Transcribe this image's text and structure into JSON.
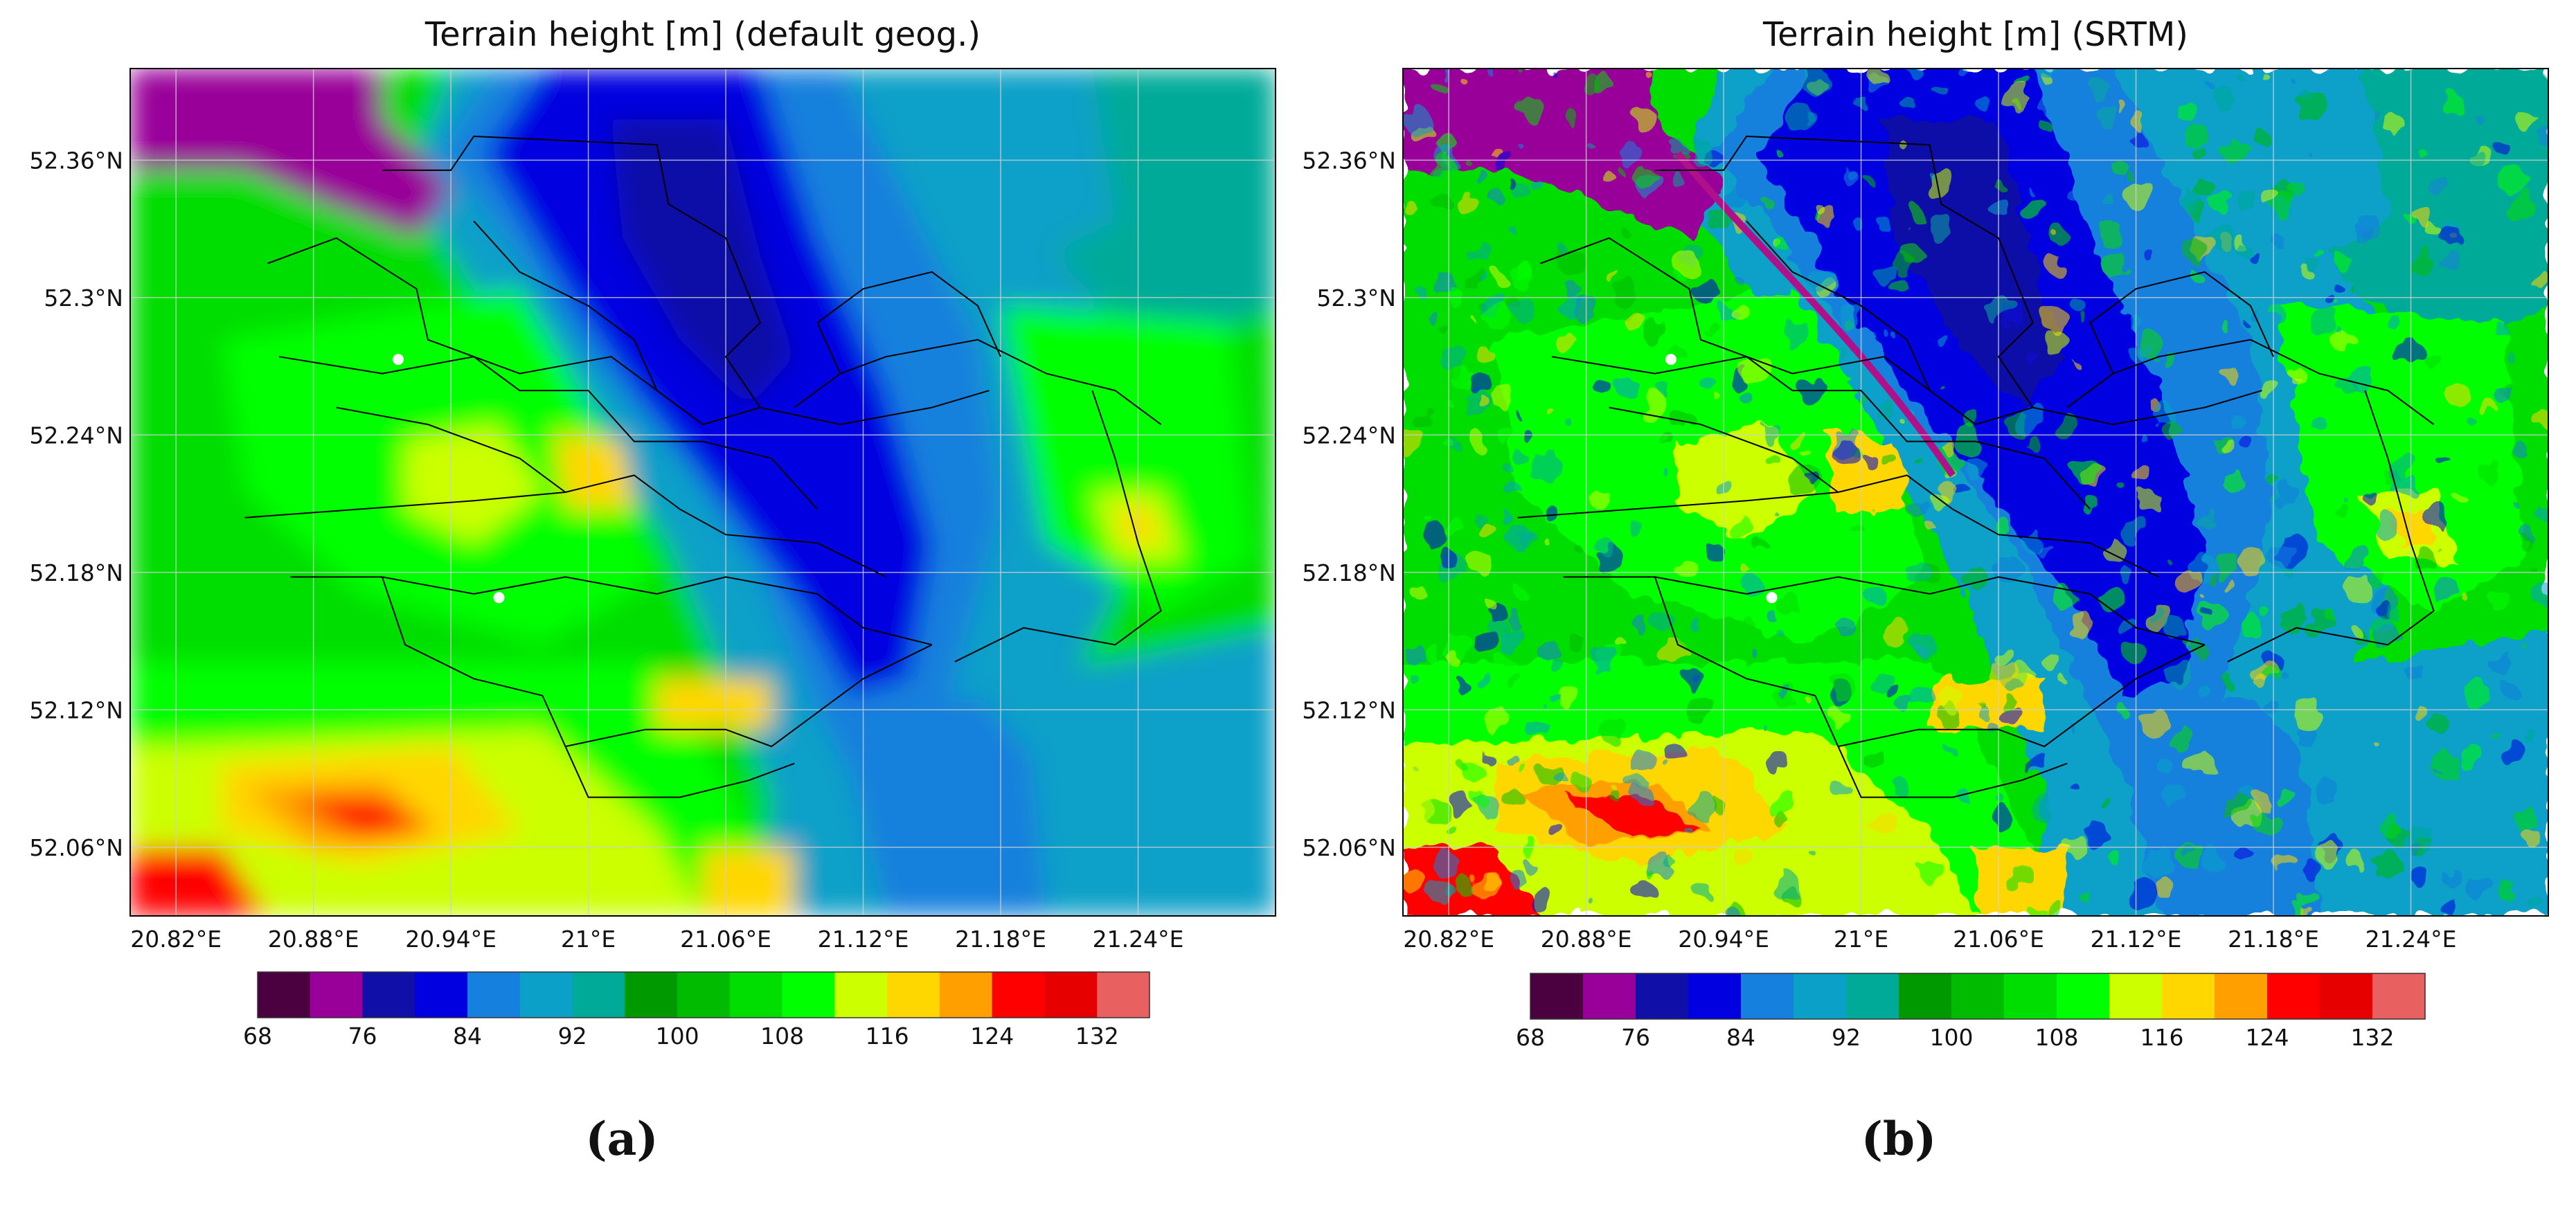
{
  "panels": [
    {
      "id": "a",
      "title": "Terrain height [m] (default geog.)",
      "label": "(a)",
      "source": "default",
      "lat_ticks": [
        "52.36°N",
        "52.3°N",
        "52.24°N",
        "52.18°N",
        "52.12°N",
        "52.06°N"
      ],
      "lon_ticks": [
        "20.82°E",
        "20.88°E",
        "20.94°E",
        "21°E",
        "21.06°E",
        "21.12°E",
        "21.18°E",
        "21.24°E"
      ]
    },
    {
      "id": "b",
      "title": "Terrain height [m] (SRTM)",
      "label": "(b)",
      "source": "srtm",
      "lat_ticks": [
        "52.36°N",
        "52.3°N",
        "52.24°N",
        "52.18°N",
        "52.12°N",
        "52.06°N"
      ],
      "lon_ticks": [
        "20.82°E",
        "20.88°E",
        "20.94°E",
        "21°E",
        "21.06°E",
        "21.12°E",
        "21.18°E",
        "21.24°E"
      ]
    }
  ],
  "map_extent": {
    "lon": [
      20.8,
      21.3
    ],
    "lat": [
      52.03,
      52.4
    ]
  },
  "colorbar": {
    "levels": [
      68,
      72,
      76,
      80,
      84,
      88,
      92,
      96,
      100,
      104,
      108,
      112,
      116,
      120,
      124,
      128,
      132,
      136
    ],
    "tick_labels": [
      "68",
      "76",
      "84",
      "92",
      "100",
      "108",
      "116",
      "124",
      "132"
    ],
    "colors": [
      "#4b0040",
      "#990099",
      "#1010a8",
      "#0000e0",
      "#1580dd",
      "#0aa0c8",
      "#00aa99",
      "#009900",
      "#00bb00",
      "#00dd00",
      "#00ff00",
      "#ccff00",
      "#ffd700",
      "#ffa000",
      "#ff0000",
      "#e60000",
      "#e86060"
    ]
  },
  "stations": [
    {
      "lon": 20.917,
      "lat": 52.273
    },
    {
      "lon": 20.961,
      "lat": 52.169
    }
  ],
  "colors": {
    "grid": "#cfcfcf",
    "border": "#000000",
    "background": "#ffffff"
  }
}
